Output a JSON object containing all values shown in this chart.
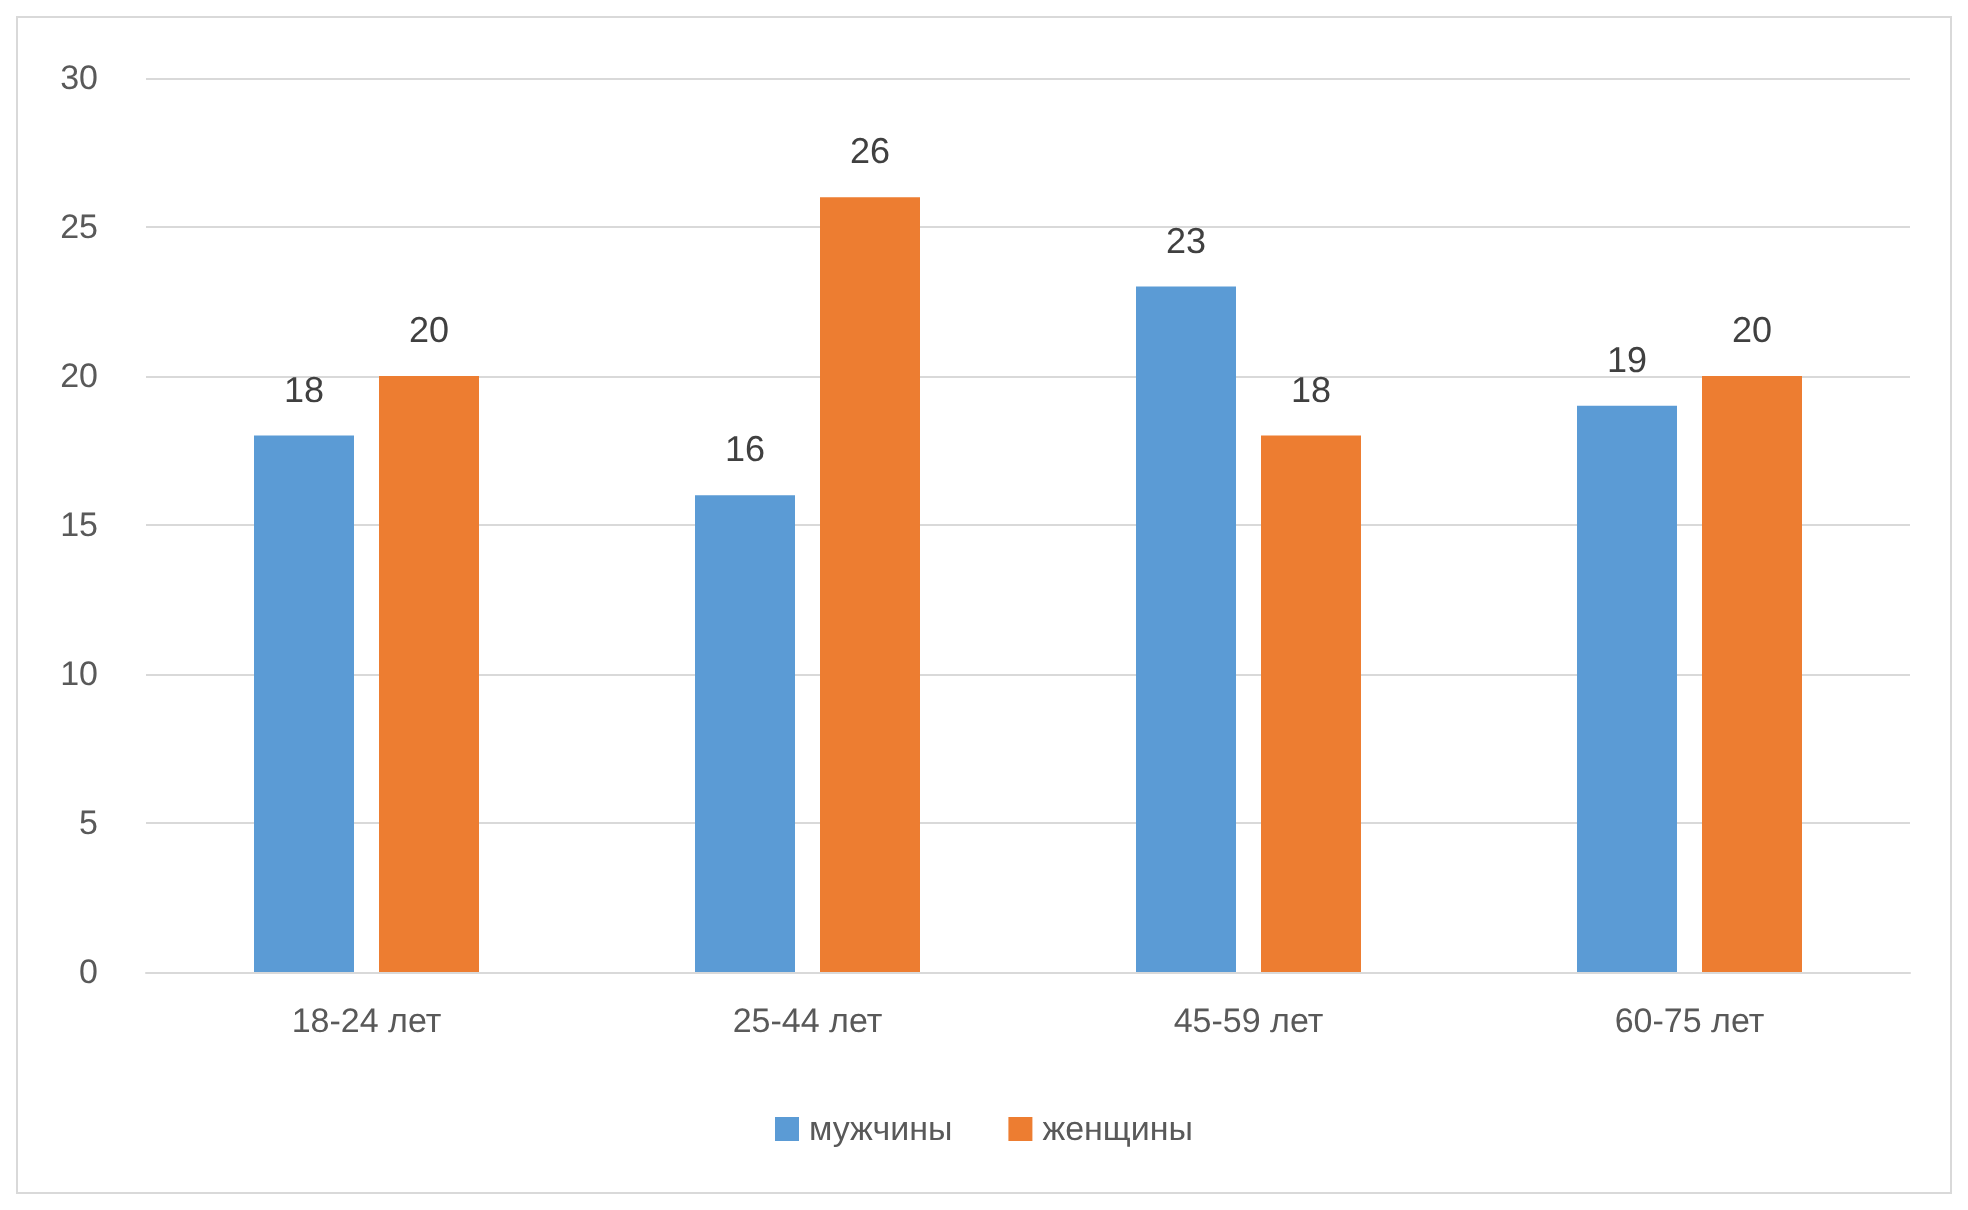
{
  "chart_data": {
    "type": "bar",
    "categories": [
      "18-24 лет",
      "25-44 лет",
      "45-59 лет",
      "60-75 лет"
    ],
    "series": [
      {
        "name": "мужчины",
        "color": "#5b9bd5",
        "values": [
          18,
          16,
          23,
          19
        ]
      },
      {
        "name": "женщины",
        "color": "#ed7d31",
        "values": [
          20,
          26,
          18,
          20
        ]
      }
    ],
    "ylim": [
      0,
      30
    ],
    "yticks": [
      0,
      5,
      10,
      15,
      20,
      25,
      30
    ],
    "grid": "y",
    "legend": "bottom",
    "data_labels": true
  }
}
